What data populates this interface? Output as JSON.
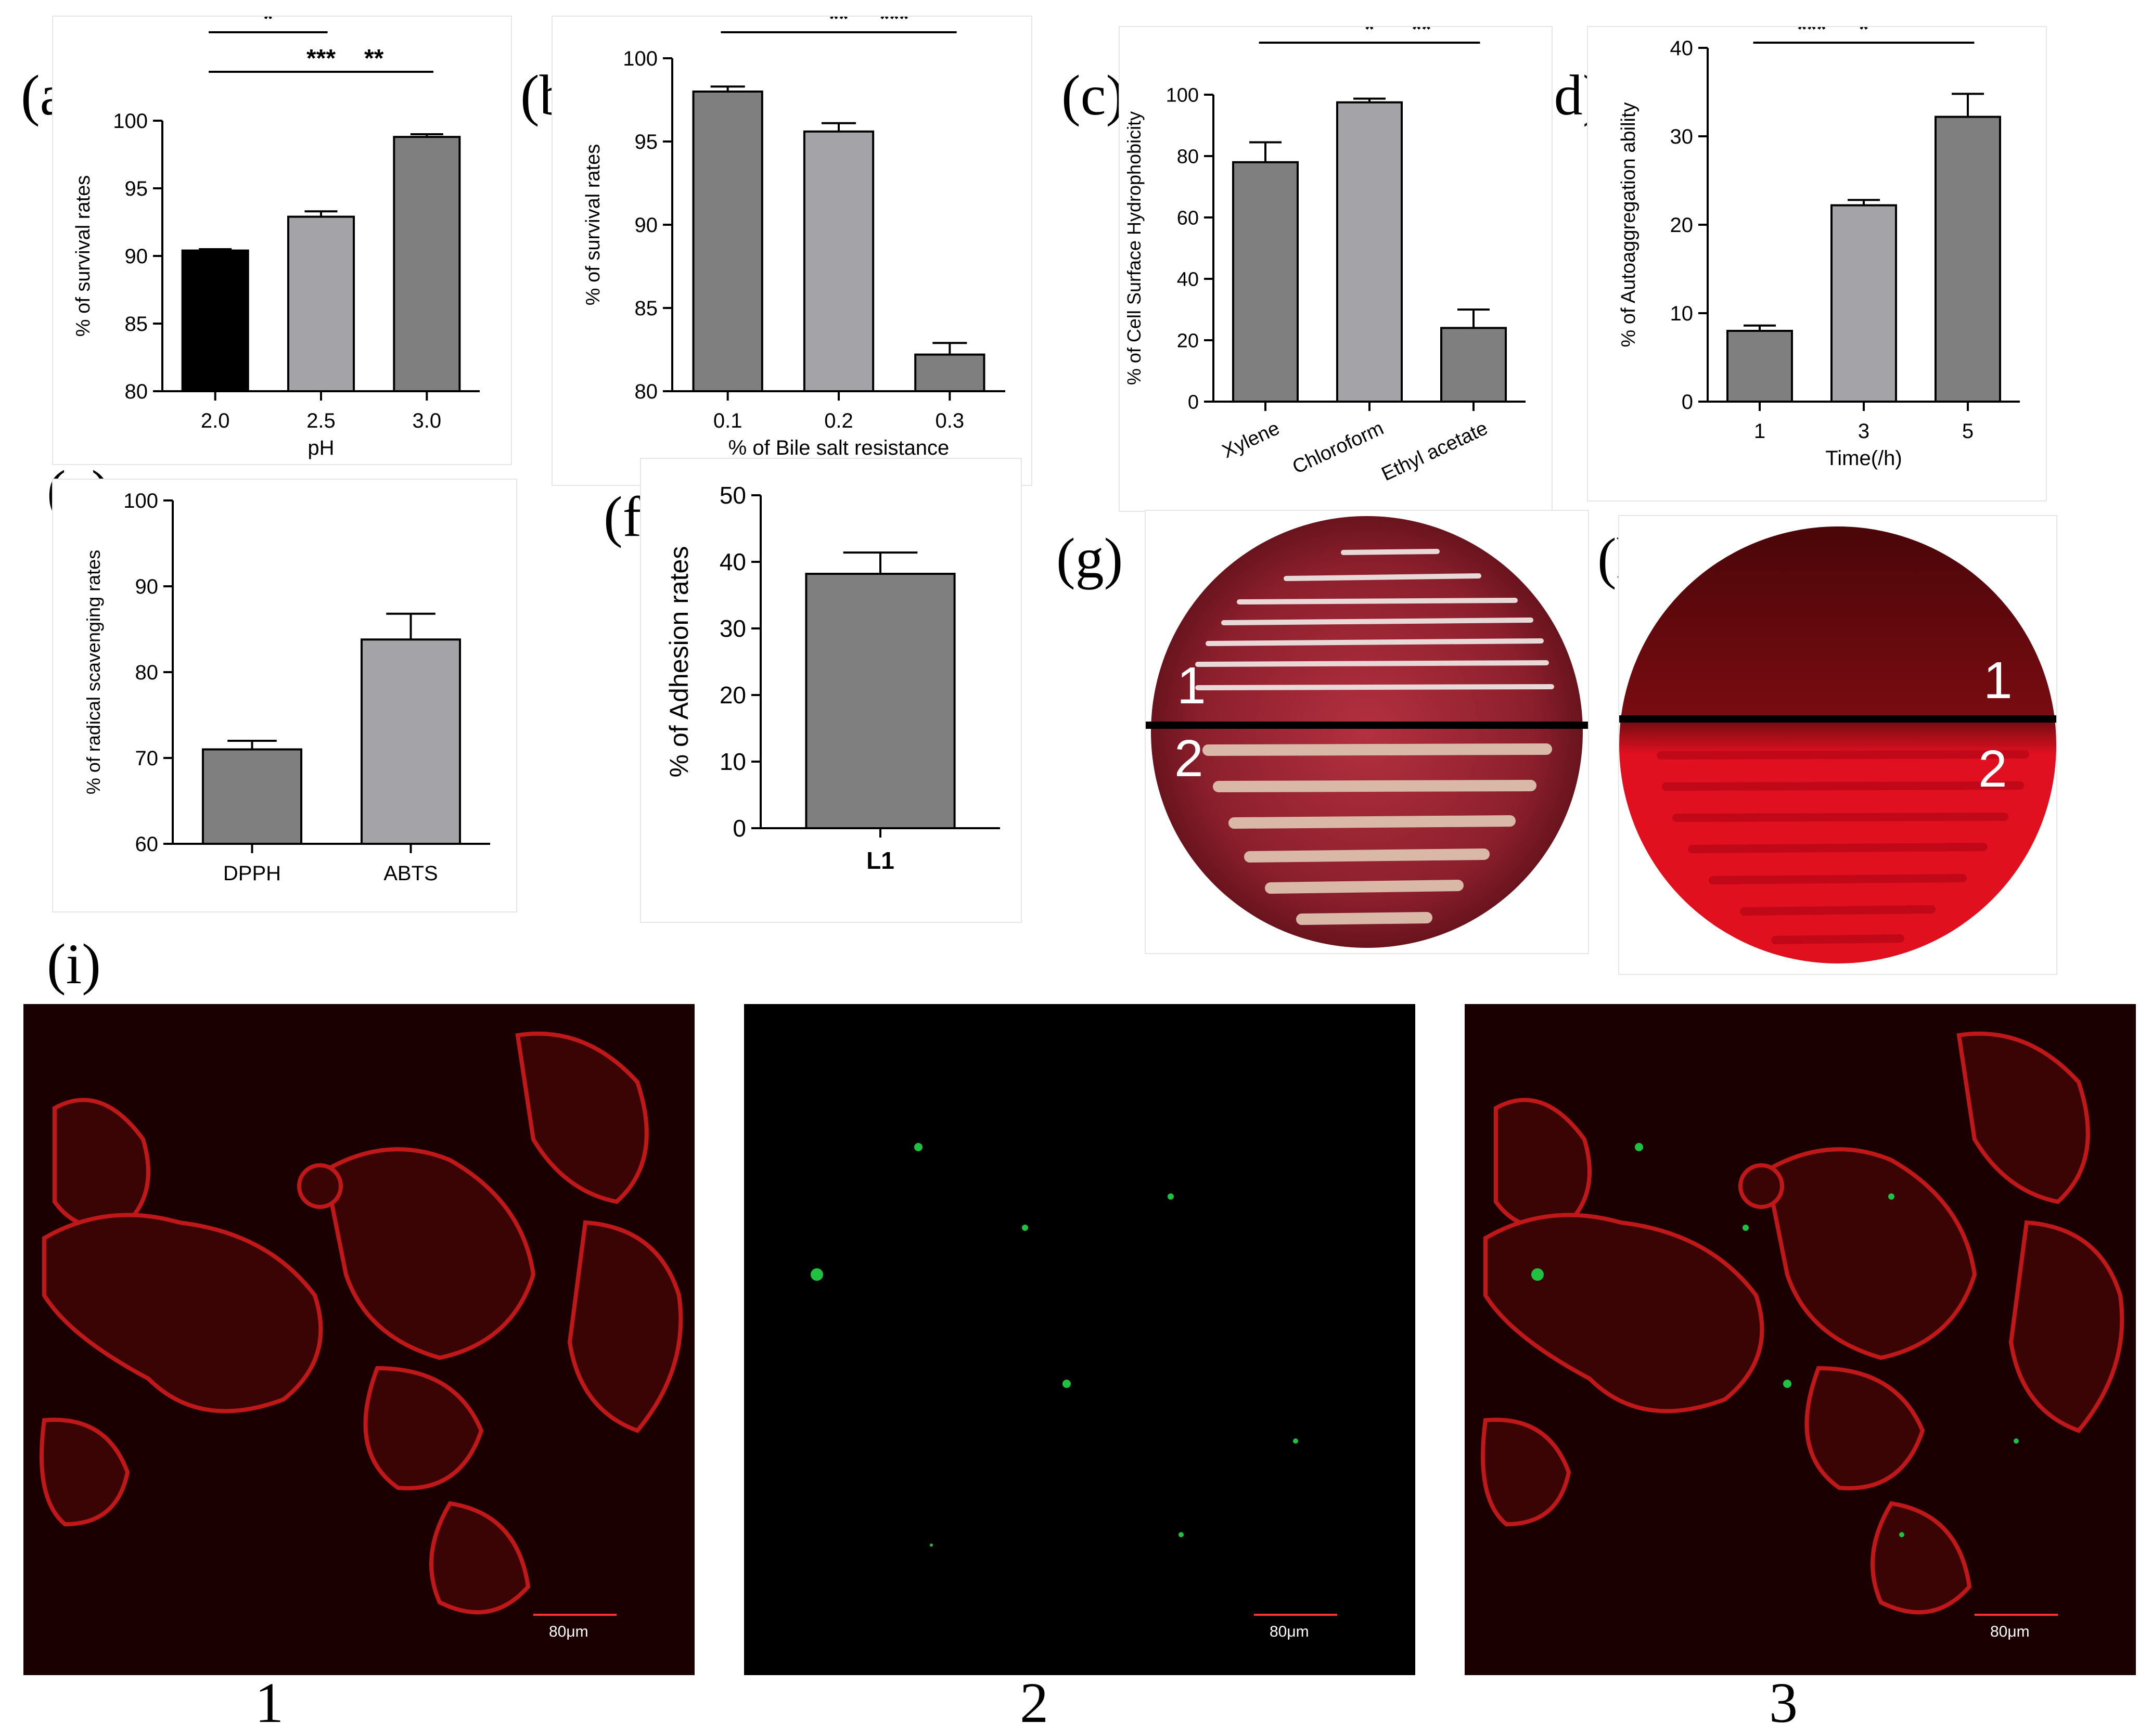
{
  "panels": {
    "a": {
      "letter": "(a)"
    },
    "b": {
      "letter": "(b)"
    },
    "c": {
      "letter": "(c)"
    },
    "d": {
      "letter": "(d)"
    },
    "e": {
      "letter": "(e)"
    },
    "f": {
      "letter": "(f)"
    },
    "g": {
      "letter": "(g)",
      "label_top": "1",
      "label_bottom": "2"
    },
    "h": {
      "letter": "(h)",
      "label_top": "1",
      "label_bottom": "2"
    },
    "i": {
      "letter": "(i)",
      "images": [
        {
          "label": "1",
          "scale": "80μm"
        },
        {
          "label": "2",
          "scale": "80μm"
        },
        {
          "label": "3",
          "scale": "80μm"
        }
      ]
    }
  },
  "chart_data": [
    {
      "id": "a",
      "type": "bar",
      "categories": [
        "2.0",
        "2.5",
        "3.0"
      ],
      "values": [
        90.4,
        92.9,
        98.8
      ],
      "errors": [
        0.1,
        0.4,
        0.2
      ],
      "colors": [
        "#000000",
        "#a3a3a8",
        "#7f7f7f"
      ],
      "ylabel": "% of survival rates",
      "xlabel": "pH",
      "ylim": [
        80,
        100
      ],
      "yticks": [
        80,
        85,
        90,
        95,
        100
      ],
      "significance": [
        {
          "from": 0,
          "to": 2,
          "label": "***"
        },
        {
          "from": 1,
          "to": 2,
          "label": "**"
        },
        {
          "from": 0,
          "to": 1,
          "label": "*"
        }
      ]
    },
    {
      "id": "b",
      "type": "bar",
      "categories": [
        "0.1",
        "0.2",
        "0.3"
      ],
      "values": [
        98.0,
        95.6,
        82.2
      ],
      "errors": [
        0.3,
        0.5,
        0.7
      ],
      "colors": [
        "#7f7f7f",
        "#a3a3a8",
        "#7f7f7f"
      ],
      "ylabel": "% of survival rates",
      "xlabel": "% of Bile salt resistance",
      "ylim": [
        80,
        100
      ],
      "yticks": [
        80,
        85,
        90,
        95,
        100
      ],
      "significance": [
        {
          "from": 0,
          "to": 2,
          "label": "**"
        },
        {
          "from": 1,
          "to": 2,
          "label": "***"
        }
      ]
    },
    {
      "id": "c",
      "type": "bar",
      "categories": [
        "Xylene",
        "Chloroform",
        "Ethyl acetate"
      ],
      "values": [
        78,
        97.5,
        24
      ],
      "errors": [
        6.5,
        1.2,
        6
      ],
      "colors": [
        "#7f7f7f",
        "#a3a3a8",
        "#7f7f7f"
      ],
      "ylabel": "% of Cell Surface Hydrophobicity",
      "xlabel": "",
      "ylim": [
        0,
        100
      ],
      "yticks": [
        0,
        20,
        40,
        60,
        80,
        100
      ],
      "rotate_labels": true,
      "significance": [
        {
          "from": 0,
          "to": 2,
          "label": "*"
        },
        {
          "from": 1,
          "to": 2,
          "label": "**"
        }
      ]
    },
    {
      "id": "d",
      "type": "bar",
      "categories": [
        "1",
        "3",
        "5"
      ],
      "values": [
        8,
        22.2,
        32.2
      ],
      "errors": [
        0.6,
        0.6,
        2.6
      ],
      "colors": [
        "#7f7f7f",
        "#a3a3a8",
        "#7f7f7f"
      ],
      "ylabel": "% of Autoaggregation ability",
      "xlabel": "Time(/h)",
      "ylim": [
        0,
        40
      ],
      "yticks": [
        0,
        10,
        20,
        30,
        40
      ],
      "significance": [
        {
          "from": 0,
          "to": 2,
          "label": "*"
        },
        {
          "from": 0,
          "to": 1,
          "label": "***"
        }
      ]
    },
    {
      "id": "e",
      "type": "bar",
      "categories": [
        "DPPH",
        "ABTS"
      ],
      "values": [
        71,
        83.8
      ],
      "errors": [
        1.0,
        3.0
      ],
      "colors": [
        "#7f7f7f",
        "#a3a3a8"
      ],
      "ylabel": "% of radical scavenging rates",
      "xlabel": "",
      "ylim": [
        60,
        100
      ],
      "yticks": [
        60,
        70,
        80,
        90,
        100
      ],
      "significance": []
    },
    {
      "id": "f",
      "type": "bar",
      "categories": [
        "L1"
      ],
      "values": [
        38.2
      ],
      "errors": [
        3.2
      ],
      "colors": [
        "#7f7f7f"
      ],
      "ylabel": "% of Adhesion rates",
      "xlabel": "",
      "ylim": [
        0,
        50
      ],
      "yticks": [
        0,
        10,
        20,
        30,
        40,
        50
      ],
      "bold_categories": true,
      "significance": []
    }
  ]
}
